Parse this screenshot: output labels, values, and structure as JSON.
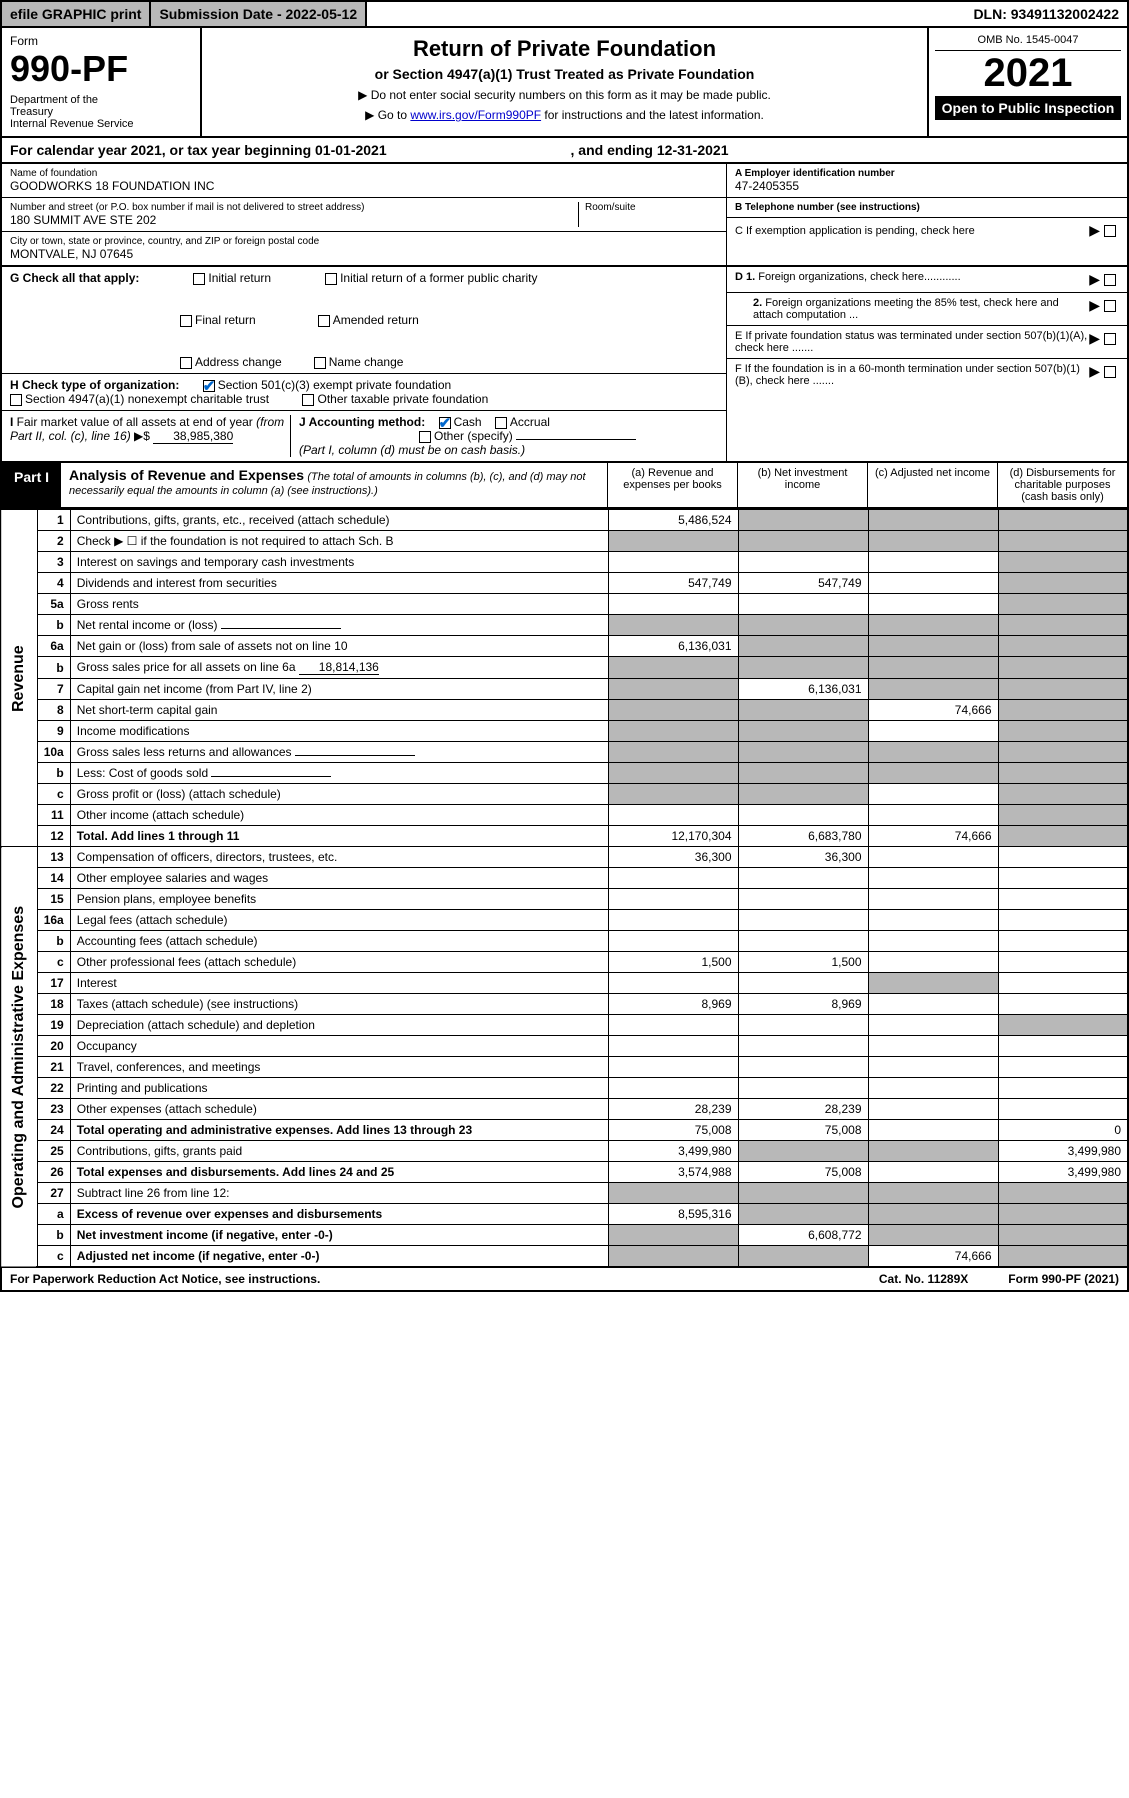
{
  "top_bar": {
    "efile": "efile GRAPHIC print",
    "submission": "Submission Date - 2022-05-12",
    "dln": "DLN: 93491132002422"
  },
  "header": {
    "form_label": "Form",
    "form_num": "990-PF",
    "dept": "Department of the Treasury\nInternal Revenue Service",
    "title": "Return of Private Foundation",
    "subtitle": "or Section 4947(a)(1) Trust Treated as Private Foundation",
    "note1": "▶ Do not enter social security numbers on this form as it may be made public.",
    "note2_pre": "▶ Go to ",
    "note2_link": "www.irs.gov/Form990PF",
    "note2_post": " for instructions and the latest information.",
    "omb": "OMB No. 1545-0047",
    "year": "2021",
    "open": "Open to Public Inspection"
  },
  "cal_year": {
    "pre": "For calendar year 2021, or tax year beginning ",
    "begin": "01-01-2021",
    "mid": ", and ending ",
    "end": "12-31-2021"
  },
  "info": {
    "name_label": "Name of foundation",
    "name": "GOODWORKS 18 FOUNDATION INC",
    "address_label": "Number and street (or P.O. box number if mail is not delivered to street address)",
    "address": "180 SUMMIT AVE STE 202",
    "room_label": "Room/suite",
    "city_label": "City or town, state or province, country, and ZIP or foreign postal code",
    "city": "MONTVALE, NJ  07645",
    "ein_label": "A Employer identification number",
    "ein": "47-2405355",
    "phone_label": "B Telephone number (see instructions)",
    "phone": "",
    "c_label": "C If exemption application is pending, check here"
  },
  "g": {
    "label": "G Check all that apply:",
    "opts": [
      "Initial return",
      "Final return",
      "Address change",
      "Initial return of a former public charity",
      "Amended return",
      "Name change"
    ]
  },
  "h": {
    "label": "H Check type of organization:",
    "opt1": "Section 501(c)(3) exempt private foundation",
    "opt2": "Section 4947(a)(1) nonexempt charitable trust",
    "opt3": "Other taxable private foundation"
  },
  "i": {
    "label": "I Fair market value of all assets at end of year (from Part II, col. (c), line 16) ▶$ ",
    "val": "38,985,380"
  },
  "j": {
    "label": "J Accounting method:",
    "cash": "Cash",
    "accrual": "Accrual",
    "other": "Other (specify)",
    "note": "(Part I, column (d) must be on cash basis.)"
  },
  "right_de": {
    "d1": "D 1. Foreign organizations, check here............",
    "d2": "2. Foreign organizations meeting the 85% test, check here and attach computation ...",
    "e": "E  If private foundation status was terminated under section 507(b)(1)(A), check here .......",
    "f": "F  If the foundation is in a 60-month termination under section 507(b)(1)(B), check here .......",
    "arrow": "▶"
  },
  "part1": {
    "label": "Part I",
    "title": "Analysis of Revenue and Expenses",
    "sub": "(The total of amounts in columns (b), (c), and (d) may not necessarily equal the amounts in column (a) (see instructions).)",
    "col_a": "(a) Revenue and expenses per books",
    "col_b": "(b) Net investment income",
    "col_c": "(c) Adjusted net income",
    "col_d": "(d) Disbursements for charitable purposes (cash basis only)"
  },
  "side_labels": {
    "revenue": "Revenue",
    "expenses": "Operating and Administrative Expenses"
  },
  "rows": [
    {
      "n": "1",
      "desc": "Contributions, gifts, grants, etc., received (attach schedule)",
      "a": "5,486,524",
      "b": "",
      "c": "",
      "d": "",
      "b_sh": true,
      "c_sh": true,
      "d_sh": true
    },
    {
      "n": "2",
      "desc": "Check ▶ ☐ if the foundation is not required to attach Sch. B",
      "a": "",
      "b": "",
      "c": "",
      "d": "",
      "a_sh": true,
      "b_sh": true,
      "c_sh": true,
      "d_sh": true
    },
    {
      "n": "3",
      "desc": "Interest on savings and temporary cash investments",
      "a": "",
      "b": "",
      "c": "",
      "d": "",
      "d_sh": true
    },
    {
      "n": "4",
      "desc": "Dividends and interest from securities",
      "a": "547,749",
      "b": "547,749",
      "c": "",
      "d": "",
      "d_sh": true
    },
    {
      "n": "5a",
      "desc": "Gross rents",
      "a": "",
      "b": "",
      "c": "",
      "d": "",
      "d_sh": true
    },
    {
      "n": "b",
      "desc": "Net rental income or (loss)",
      "a": "",
      "b": "",
      "c": "",
      "d": "",
      "a_sh": true,
      "b_sh": true,
      "c_sh": true,
      "d_sh": true,
      "inline": true
    },
    {
      "n": "6a",
      "desc": "Net gain or (loss) from sale of assets not on line 10",
      "a": "6,136,031",
      "b": "",
      "c": "",
      "d": "",
      "b_sh": true,
      "c_sh": true,
      "d_sh": true
    },
    {
      "n": "b",
      "desc": "Gross sales price for all assets on line 6a",
      "a": "",
      "b": "",
      "c": "",
      "d": "",
      "a_sh": true,
      "b_sh": true,
      "c_sh": true,
      "d_sh": true,
      "inline_val": "18,814,136"
    },
    {
      "n": "7",
      "desc": "Capital gain net income (from Part IV, line 2)",
      "a": "",
      "b": "6,136,031",
      "c": "",
      "d": "",
      "a_sh": true,
      "c_sh": true,
      "d_sh": true
    },
    {
      "n": "8",
      "desc": "Net short-term capital gain",
      "a": "",
      "b": "",
      "c": "74,666",
      "d": "",
      "a_sh": true,
      "b_sh": true,
      "d_sh": true
    },
    {
      "n": "9",
      "desc": "Income modifications",
      "a": "",
      "b": "",
      "c": "",
      "d": "",
      "a_sh": true,
      "b_sh": true,
      "d_sh": true
    },
    {
      "n": "10a",
      "desc": "Gross sales less returns and allowances",
      "a": "",
      "b": "",
      "c": "",
      "d": "",
      "a_sh": true,
      "b_sh": true,
      "c_sh": true,
      "d_sh": true,
      "inline": true
    },
    {
      "n": "b",
      "desc": "Less: Cost of goods sold",
      "a": "",
      "b": "",
      "c": "",
      "d": "",
      "a_sh": true,
      "b_sh": true,
      "c_sh": true,
      "d_sh": true,
      "inline": true
    },
    {
      "n": "c",
      "desc": "Gross profit or (loss) (attach schedule)",
      "a": "",
      "b": "",
      "c": "",
      "d": "",
      "a_sh": true,
      "b_sh": true,
      "d_sh": true
    },
    {
      "n": "11",
      "desc": "Other income (attach schedule)",
      "a": "",
      "b": "",
      "c": "",
      "d": "",
      "d_sh": true
    },
    {
      "n": "12",
      "desc": "Total. Add lines 1 through 11",
      "a": "12,170,304",
      "b": "6,683,780",
      "c": "74,666",
      "d": "",
      "d_sh": true,
      "bold": true
    },
    {
      "n": "13",
      "desc": "Compensation of officers, directors, trustees, etc.",
      "a": "36,300",
      "b": "36,300",
      "c": "",
      "d": ""
    },
    {
      "n": "14",
      "desc": "Other employee salaries and wages",
      "a": "",
      "b": "",
      "c": "",
      "d": ""
    },
    {
      "n": "15",
      "desc": "Pension plans, employee benefits",
      "a": "",
      "b": "",
      "c": "",
      "d": ""
    },
    {
      "n": "16a",
      "desc": "Legal fees (attach schedule)",
      "a": "",
      "b": "",
      "c": "",
      "d": ""
    },
    {
      "n": "b",
      "desc": "Accounting fees (attach schedule)",
      "a": "",
      "b": "",
      "c": "",
      "d": ""
    },
    {
      "n": "c",
      "desc": "Other professional fees (attach schedule)",
      "a": "1,500",
      "b": "1,500",
      "c": "",
      "d": ""
    },
    {
      "n": "17",
      "desc": "Interest",
      "a": "",
      "b": "",
      "c": "",
      "d": "",
      "c_sh": true
    },
    {
      "n": "18",
      "desc": "Taxes (attach schedule) (see instructions)",
      "a": "8,969",
      "b": "8,969",
      "c": "",
      "d": ""
    },
    {
      "n": "19",
      "desc": "Depreciation (attach schedule) and depletion",
      "a": "",
      "b": "",
      "c": "",
      "d": "",
      "d_sh": true
    },
    {
      "n": "20",
      "desc": "Occupancy",
      "a": "",
      "b": "",
      "c": "",
      "d": ""
    },
    {
      "n": "21",
      "desc": "Travel, conferences, and meetings",
      "a": "",
      "b": "",
      "c": "",
      "d": ""
    },
    {
      "n": "22",
      "desc": "Printing and publications",
      "a": "",
      "b": "",
      "c": "",
      "d": ""
    },
    {
      "n": "23",
      "desc": "Other expenses (attach schedule)",
      "a": "28,239",
      "b": "28,239",
      "c": "",
      "d": ""
    },
    {
      "n": "24",
      "desc": "Total operating and administrative expenses. Add lines 13 through 23",
      "a": "75,008",
      "b": "75,008",
      "c": "",
      "d": "0",
      "bold": true
    },
    {
      "n": "25",
      "desc": "Contributions, gifts, grants paid",
      "a": "3,499,980",
      "b": "",
      "c": "",
      "d": "3,499,980",
      "b_sh": true,
      "c_sh": true
    },
    {
      "n": "26",
      "desc": "Total expenses and disbursements. Add lines 24 and 25",
      "a": "3,574,988",
      "b": "75,008",
      "c": "",
      "d": "3,499,980",
      "bold": true
    },
    {
      "n": "27",
      "desc": "Subtract line 26 from line 12:",
      "a": "",
      "b": "",
      "c": "",
      "d": "",
      "a_sh": true,
      "b_sh": true,
      "c_sh": true,
      "d_sh": true
    },
    {
      "n": "a",
      "desc": "Excess of revenue over expenses and disbursements",
      "a": "8,595,316",
      "b": "",
      "c": "",
      "d": "",
      "b_sh": true,
      "c_sh": true,
      "d_sh": true,
      "bold": true
    },
    {
      "n": "b",
      "desc": "Net investment income (if negative, enter -0-)",
      "a": "",
      "b": "6,608,772",
      "c": "",
      "d": "",
      "a_sh": true,
      "c_sh": true,
      "d_sh": true,
      "bold": true
    },
    {
      "n": "c",
      "desc": "Adjusted net income (if negative, enter -0-)",
      "a": "",
      "b": "",
      "c": "74,666",
      "d": "",
      "a_sh": true,
      "b_sh": true,
      "d_sh": true,
      "bold": true
    }
  ],
  "footer": {
    "left": "For Paperwork Reduction Act Notice, see instructions.",
    "mid": "Cat. No. 11289X",
    "right": "Form 990-PF (2021)"
  },
  "colors": {
    "link": "#0000cc",
    "shade": "#b8b8b8",
    "check": "#0066cc"
  }
}
